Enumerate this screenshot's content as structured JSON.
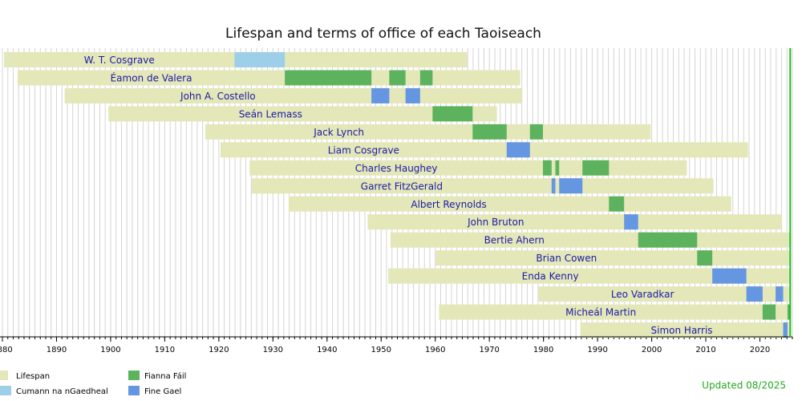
{
  "chart_data": {
    "type": "timeline",
    "title": "Lifespan and terms of office of each Taoiseach",
    "xlim": [
      1880,
      2026
    ],
    "xticks": [
      1880,
      1890,
      1900,
      1910,
      1920,
      1930,
      1940,
      1950,
      1960,
      1970,
      1980,
      1990,
      2000,
      2010,
      2020
    ],
    "minor_xticks": [
      1880,
      1881,
      1882,
      1883,
      1884,
      1885,
      1886,
      1887,
      1888,
      1889,
      1890,
      1891,
      1892,
      1893,
      1894,
      1895,
      1896,
      1897,
      1898,
      1899,
      1900,
      1901,
      1902,
      1903,
      1904,
      1905,
      1906,
      1907,
      1908,
      1909,
      1910,
      1911,
      1912,
      1913,
      1914,
      1915,
      1916,
      1917,
      1918,
      1919,
      1920,
      1921,
      1922,
      1923,
      1924,
      1925,
      1926,
      1927,
      1928,
      1929,
      1930,
      1931,
      1932,
      1933,
      1934,
      1935,
      1936,
      1937,
      1938,
      1939,
      1940,
      1941,
      1942,
      1943,
      1944,
      1945,
      1946,
      1947,
      1948,
      1949,
      1950,
      1951,
      1952,
      1953,
      1954,
      1955,
      1956,
      1957,
      1958,
      1959,
      1960,
      1961,
      1962,
      1963,
      1964,
      1965,
      1966,
      1967,
      1968,
      1969,
      1970,
      1971,
      1972,
      1973,
      1974,
      1975,
      1976,
      1977,
      1978,
      1979,
      1980,
      1981,
      1982,
      1983,
      1984,
      1985,
      1986,
      1987,
      1988,
      1989,
      1990,
      1991,
      1992,
      1993,
      1994,
      1995,
      1996,
      1997,
      1998,
      1999,
      2000,
      2001,
      2002,
      2003,
      2004,
      2005,
      2006,
      2007,
      2008,
      2009,
      2010,
      2011,
      2012,
      2013,
      2014,
      2015,
      2016,
      2017,
      2018,
      2019,
      2020,
      2021,
      2022,
      2023,
      2024,
      2025,
      2026
    ],
    "grid": true,
    "current_date": 2025.6,
    "current_date_color": "#22bb22",
    "lifespan_label": "Lifespan",
    "lifespan_color": "#e4e7b8",
    "parties": [
      {
        "name": "Cumann na nGaedheal",
        "color": "#9dcfe9"
      },
      {
        "name": "Fianna Fáil",
        "color": "#5db35d"
      },
      {
        "name": "Fine Gael",
        "color": "#6596e2"
      }
    ],
    "rows": [
      {
        "name": "W. T. Cosgrave",
        "lifespan": [
          1880.3,
          1965.9
        ],
        "terms": [
          {
            "party": "Cumann na nGaedheal",
            "start": 1922.9,
            "end": 1932.2
          }
        ]
      },
      {
        "name": "Éamon de Valera",
        "lifespan": [
          1882.8,
          1975.7
        ],
        "terms": [
          {
            "party": "Fianna Fáil",
            "start": 1932.2,
            "end": 1948.2
          },
          {
            "party": "Fianna Fáil",
            "start": 1951.5,
            "end": 1954.5
          },
          {
            "party": "Fianna Fáil",
            "start": 1957.2,
            "end": 1959.5
          }
        ]
      },
      {
        "name": "John A. Costello",
        "lifespan": [
          1891.5,
          1976.0
        ],
        "terms": [
          {
            "party": "Fine Gael",
            "start": 1948.2,
            "end": 1951.5
          },
          {
            "party": "Fine Gael",
            "start": 1954.5,
            "end": 1957.2
          }
        ]
      },
      {
        "name": "Seán Lemass",
        "lifespan": [
          1899.6,
          1971.4
        ],
        "terms": [
          {
            "party": "Fianna Fáil",
            "start": 1959.5,
            "end": 1966.9
          }
        ]
      },
      {
        "name": "Jack Lynch",
        "lifespan": [
          1917.5,
          1999.8
        ],
        "terms": [
          {
            "party": "Fianna Fáil",
            "start": 1966.9,
            "end": 1973.2
          },
          {
            "party": "Fianna Fáil",
            "start": 1977.5,
            "end": 1979.9
          }
        ]
      },
      {
        "name": "Liam Cosgrave",
        "lifespan": [
          1920.3,
          2017.8
        ],
        "terms": [
          {
            "party": "Fine Gael",
            "start": 1973.2,
            "end": 1977.5
          }
        ]
      },
      {
        "name": "Charles Haughey",
        "lifespan": [
          1925.7,
          2006.5
        ],
        "terms": [
          {
            "party": "Fianna Fáil",
            "start": 1979.9,
            "end": 1981.5
          },
          {
            "party": "Fianna Fáil",
            "start": 1982.2,
            "end": 1982.9
          },
          {
            "party": "Fianna Fáil",
            "start": 1987.2,
            "end": 1992.1
          }
        ]
      },
      {
        "name": "Garret FitzGerald",
        "lifespan": [
          1926.1,
          2011.4
        ],
        "terms": [
          {
            "party": "Fine Gael",
            "start": 1981.5,
            "end": 1982.2
          },
          {
            "party": "Fine Gael",
            "start": 1982.9,
            "end": 1987.2
          }
        ]
      },
      {
        "name": "Albert Reynolds",
        "lifespan": [
          1932.9,
          2014.7
        ],
        "terms": [
          {
            "party": "Fianna Fáil",
            "start": 1992.1,
            "end": 1994.9
          }
        ]
      },
      {
        "name": "John Bruton",
        "lifespan": [
          1947.5,
          2024.1
        ],
        "terms": [
          {
            "party": "Fine Gael",
            "start": 1994.9,
            "end": 1997.5
          }
        ]
      },
      {
        "name": "Bertie Ahern",
        "lifespan": [
          1951.7,
          2025.6
        ],
        "terms": [
          {
            "party": "Fianna Fáil",
            "start": 1997.5,
            "end": 2008.4
          }
        ]
      },
      {
        "name": "Brian Cowen",
        "lifespan": [
          1960.1,
          2025.6
        ],
        "terms": [
          {
            "party": "Fianna Fáil",
            "start": 2008.4,
            "end": 2011.2
          }
        ]
      },
      {
        "name": "Enda Kenny",
        "lifespan": [
          1951.3,
          2025.6
        ],
        "terms": [
          {
            "party": "Fine Gael",
            "start": 2011.2,
            "end": 2017.5
          }
        ]
      },
      {
        "name": "Leo Varadkar",
        "lifespan": [
          1979.1,
          2025.6
        ],
        "terms": [
          {
            "party": "Fine Gael",
            "start": 2017.5,
            "end": 2020.5
          },
          {
            "party": "Fine Gael",
            "start": 2022.9,
            "end": 2024.3
          }
        ]
      },
      {
        "name": "Micheál Martin",
        "lifespan": [
          1960.7,
          2025.6
        ],
        "terms": [
          {
            "party": "Fianna Fáil",
            "start": 2020.5,
            "end": 2022.9
          },
          {
            "party": "Fianna Fáil",
            "start": 2025.1,
            "end": 2025.6
          }
        ]
      },
      {
        "name": "Simon Harris",
        "lifespan": [
          1986.8,
          2025.6
        ],
        "terms": [
          {
            "party": "Fine Gael",
            "start": 2024.3,
            "end": 2025.1
          }
        ]
      }
    ],
    "note": "Updated 08/2025"
  }
}
